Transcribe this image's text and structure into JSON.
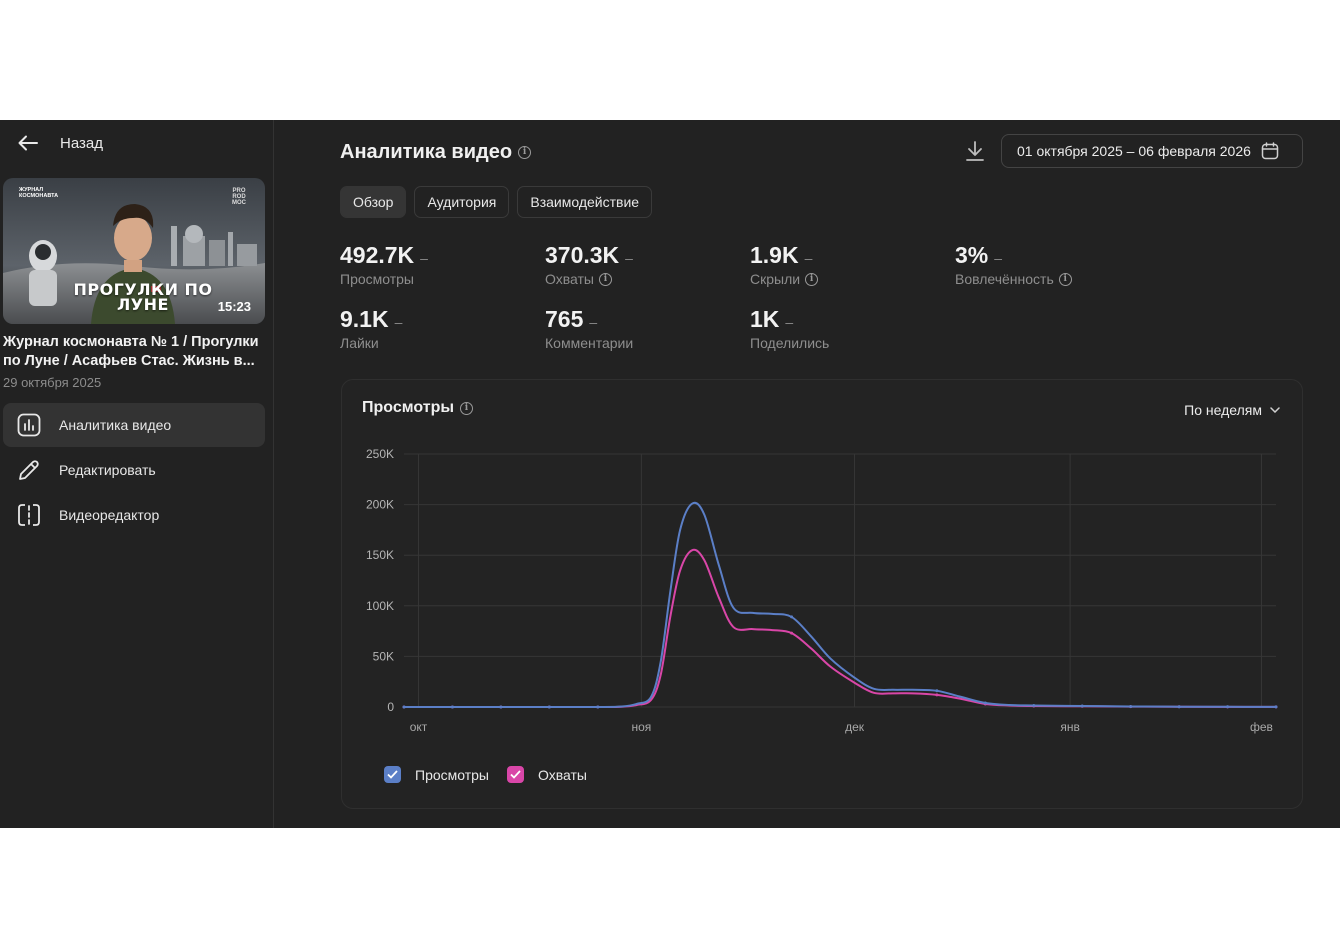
{
  "nav": {
    "back_label": "Назад"
  },
  "video": {
    "thumbnail_title": "ПРОГУЛКИ ПО ЛУНЕ",
    "thumbnail_tag": "ЖУРНАЛ КОСМОНАВТА",
    "thumbnail_logo": "PRO ROD MOC",
    "duration": "15:23",
    "title": "Журнал космонавта № 1 / Прогулки по Луне / Асафьев Стас. Жизнь в...",
    "date": "29 октября 2025"
  },
  "sidebar": {
    "items": [
      {
        "label": "Аналитика видео",
        "icon": "chart-icon",
        "active": true
      },
      {
        "label": "Редактировать",
        "icon": "pencil-icon",
        "active": false
      },
      {
        "label": "Видеоредактор",
        "icon": "video-editor-icon",
        "active": false
      }
    ]
  },
  "header": {
    "title": "Аналитика видео",
    "date_range": "01 октября 2025 – 06 февраля 2026"
  },
  "tabs": [
    {
      "label": "Обзор",
      "active": true
    },
    {
      "label": "Аудитория",
      "active": false
    },
    {
      "label": "Взаимодействие",
      "active": false
    }
  ],
  "metrics": [
    {
      "value": "492.7K",
      "delta": "–",
      "label": "Просмотры",
      "info": false
    },
    {
      "value": "370.3K",
      "delta": "–",
      "label": "Охваты",
      "info": true
    },
    {
      "value": "1.9K",
      "delta": "–",
      "label": "Скрыли",
      "info": true
    },
    {
      "value": "3%",
      "delta": "–",
      "label": "Вовлечённость",
      "info": true
    },
    {
      "value": "9.1K",
      "delta": "–",
      "label": "Лайки",
      "info": false
    },
    {
      "value": "765",
      "delta": "–",
      "label": "Комментарии",
      "info": false
    },
    {
      "value": "1K",
      "delta": "–",
      "label": "Поделились",
      "info": false
    }
  ],
  "chart_card": {
    "title": "Просмотры",
    "period": "По неделям"
  },
  "chart_data": {
    "type": "line",
    "x_unit": "week",
    "x_ticks": [
      "окт",
      "ноя",
      "дек",
      "янв",
      "фев"
    ],
    "y_ticks": [
      "0",
      "50K",
      "100K",
      "150K",
      "200K",
      "250K"
    ],
    "ylim": [
      0,
      250000
    ],
    "grid": true,
    "legend_position": "bottom-left",
    "series": [
      {
        "name": "Просмотры",
        "color": "#5b7fc7",
        "points": [
          [
            0,
            0
          ],
          [
            1,
            0
          ],
          [
            2,
            0
          ],
          [
            3,
            0
          ],
          [
            4,
            0
          ],
          [
            4.5,
            500
          ],
          [
            4.8,
            3000
          ],
          [
            5.1,
            10000
          ],
          [
            5.3,
            45000
          ],
          [
            5.5,
            115000
          ],
          [
            5.7,
            175000
          ],
          [
            5.95,
            201000
          ],
          [
            6.2,
            190000
          ],
          [
            6.5,
            140000
          ],
          [
            6.8,
            98000
          ],
          [
            7.2,
            93000
          ],
          [
            7.6,
            92000
          ],
          [
            8.0,
            89000
          ],
          [
            8.4,
            70000
          ],
          [
            8.8,
            48000
          ],
          [
            9.3,
            29000
          ],
          [
            9.7,
            18000
          ],
          [
            10.1,
            17000
          ],
          [
            10.5,
            17000
          ],
          [
            11.0,
            16000
          ],
          [
            11.5,
            10000
          ],
          [
            12.0,
            4000
          ],
          [
            12.5,
            2000
          ],
          [
            13.0,
            1500
          ],
          [
            14,
            1000
          ],
          [
            15,
            500
          ],
          [
            16,
            300
          ],
          [
            17,
            200
          ],
          [
            18,
            100
          ]
        ]
      },
      {
        "name": "Охваты",
        "color": "#d946a8",
        "points": [
          [
            0,
            0
          ],
          [
            1,
            0
          ],
          [
            2,
            0
          ],
          [
            3,
            0
          ],
          [
            4,
            0
          ],
          [
            4.5,
            300
          ],
          [
            4.8,
            2000
          ],
          [
            5.1,
            7000
          ],
          [
            5.3,
            32000
          ],
          [
            5.5,
            90000
          ],
          [
            5.7,
            135000
          ],
          [
            5.95,
            155000
          ],
          [
            6.2,
            145000
          ],
          [
            6.5,
            108000
          ],
          [
            6.8,
            79000
          ],
          [
            7.2,
            77000
          ],
          [
            7.6,
            76000
          ],
          [
            8.0,
            73000
          ],
          [
            8.4,
            58000
          ],
          [
            8.8,
            40000
          ],
          [
            9.3,
            24000
          ],
          [
            9.7,
            14000
          ],
          [
            10.1,
            13500
          ],
          [
            10.5,
            13500
          ],
          [
            11.0,
            12000
          ],
          [
            11.5,
            8000
          ],
          [
            12.0,
            3000
          ],
          [
            12.5,
            1500
          ],
          [
            13.0,
            1000
          ],
          [
            14,
            700
          ],
          [
            15,
            400
          ],
          [
            16,
            200
          ],
          [
            17,
            150
          ],
          [
            18,
            100
          ]
        ]
      }
    ]
  },
  "legend": [
    {
      "label": "Просмотры",
      "color": "#5b7fc7"
    },
    {
      "label": "Охваты",
      "color": "#d946a8"
    }
  ]
}
